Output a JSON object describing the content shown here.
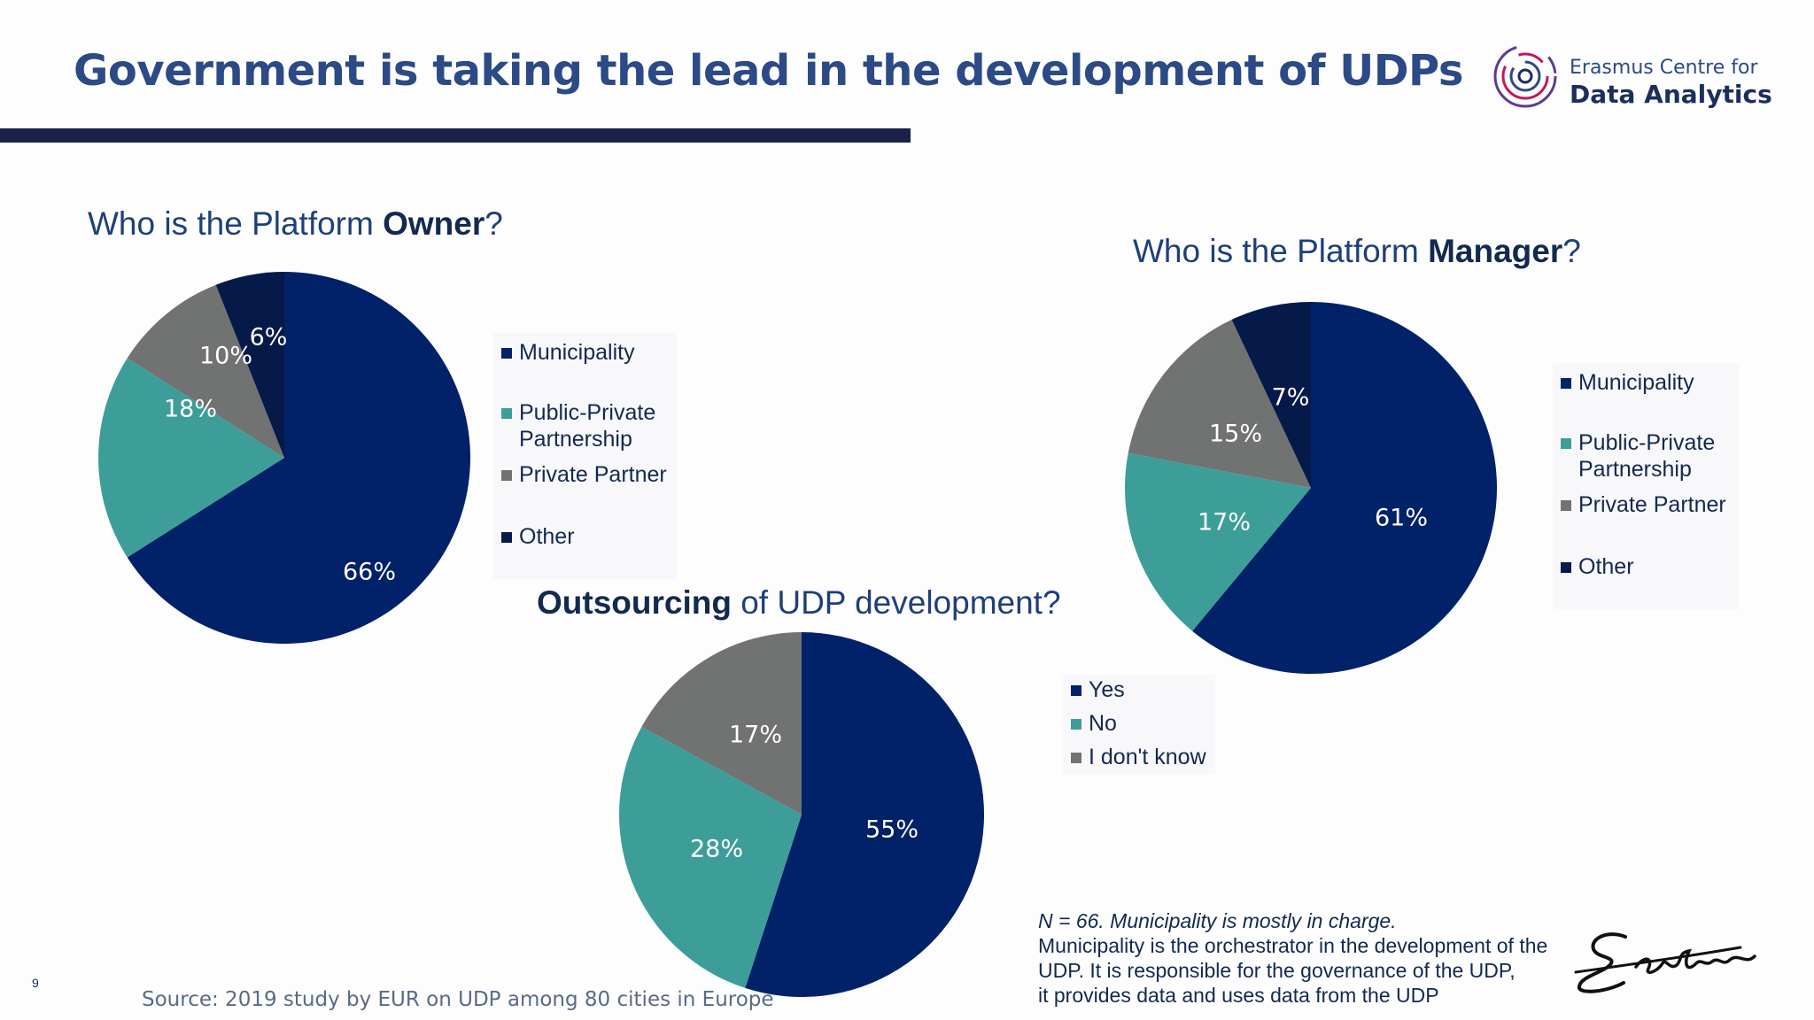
{
  "header": {
    "title": "Government is taking the lead in the development of UDPs",
    "logo": {
      "line1": "Erasmus Centre for",
      "line2": "Data Analytics",
      "icon": "concentric-circles-logo-icon"
    }
  },
  "colors": {
    "municipality": "#012169",
    "ppp": "#3d9e99",
    "private": "#707372",
    "other": "#061a49",
    "title": "#2b4a86"
  },
  "chart_data": [
    {
      "type": "pie",
      "title_pre": "Who is the Platform ",
      "title_bold": "Owner",
      "title_post": "?",
      "legend_position": "right",
      "slices": [
        {
          "label": "Municipality",
          "value": 66,
          "text": "66%"
        },
        {
          "label": "Public-Private Partnership",
          "value": 18,
          "text": "18%"
        },
        {
          "label": "Private Partner",
          "value": 10,
          "text": "10%"
        },
        {
          "label": "Other",
          "value": 6,
          "text": "6%"
        }
      ]
    },
    {
      "type": "pie",
      "title_pre": "Who is the Platform ",
      "title_bold": "Manager",
      "title_post": "?",
      "legend_position": "right",
      "slices": [
        {
          "label": "Municipality",
          "value": 61,
          "text": "61%"
        },
        {
          "label": "Public-Private Partnership",
          "value": 17,
          "text": "17%"
        },
        {
          "label": "Private Partner",
          "value": 15,
          "text": "15%"
        },
        {
          "label": "Other",
          "value": 7,
          "text": "7%"
        }
      ]
    },
    {
      "type": "pie",
      "title_pre": "",
      "title_bold": "Outsourcing",
      "title_post": " of UDP development?",
      "legend_position": "right",
      "slices": [
        {
          "label": "Yes",
          "value": 55,
          "text": "55%"
        },
        {
          "label": "No",
          "value": 28,
          "text": "28%"
        },
        {
          "label": "I don't know",
          "value": 17,
          "text": "17%"
        }
      ]
    }
  ],
  "note": {
    "line1": "N = 66. Municipality is mostly in charge.",
    "line2": "Municipality is the orchestrator in the development of the",
    "line3": "UDP. It is responsible for the governance of the UDP,",
    "line4": "it provides data and uses data from the UDP"
  },
  "source": "Source: 2019 study by EUR on UDP among 80 cities in Europe",
  "page_number": "9",
  "signature_icon": "erasmus-signature-icon"
}
